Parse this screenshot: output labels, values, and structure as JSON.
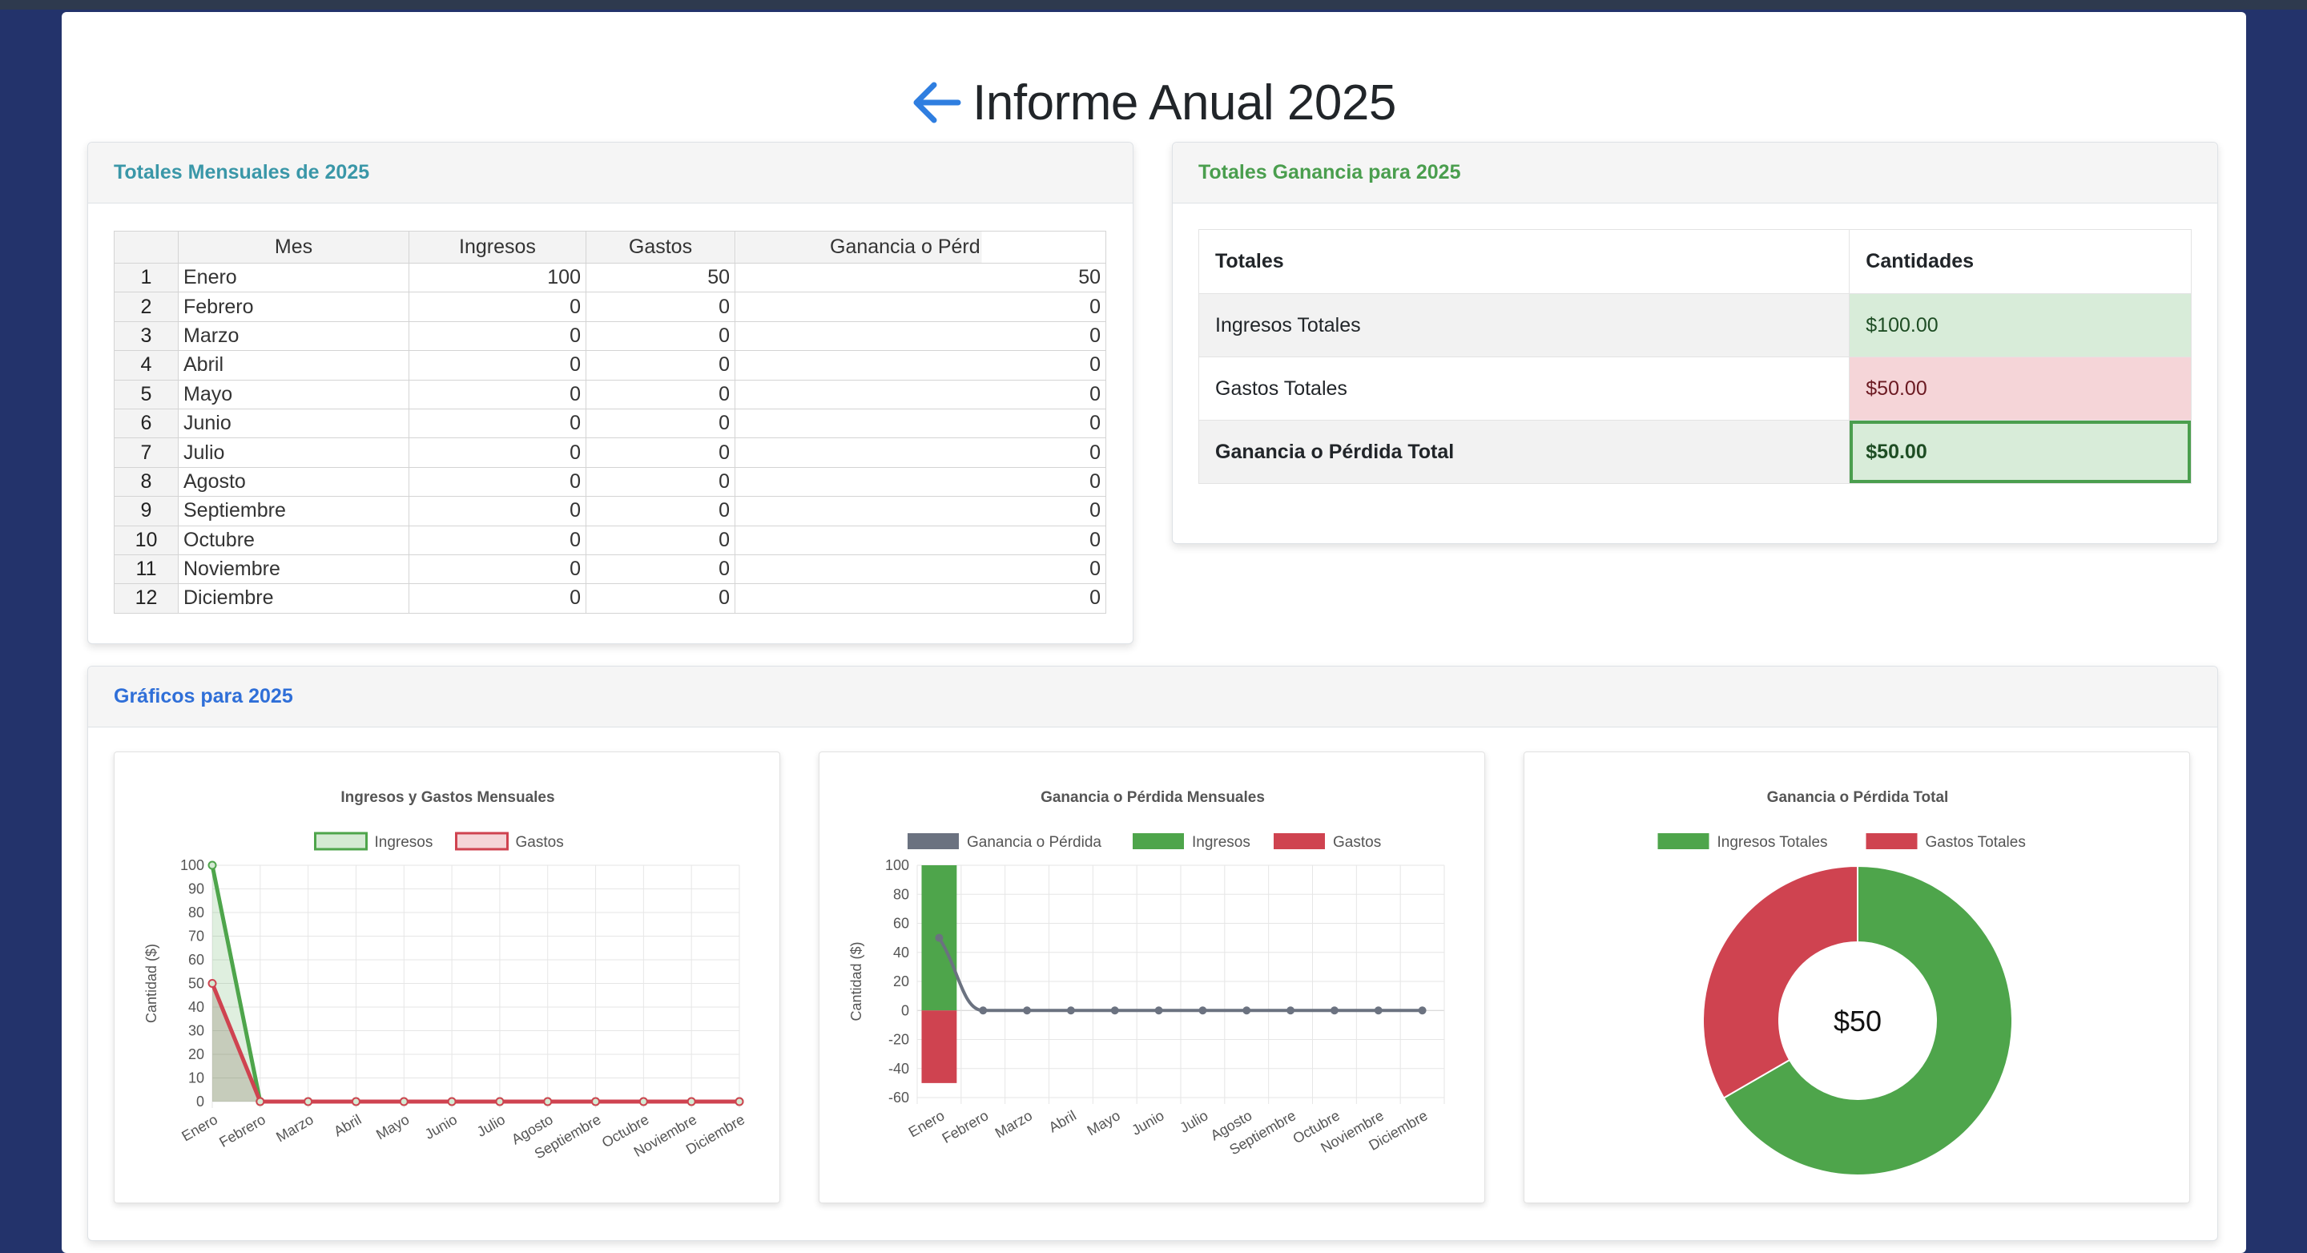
{
  "page": {
    "title": "Informe Anual 2025"
  },
  "monthly": {
    "header": "Totales Mensuales de 2025",
    "columns": [
      "Mes",
      "Ingresos",
      "Gastos",
      "Ganancia o Pérd"
    ],
    "rows": [
      {
        "n": "1",
        "mes": "Enero",
        "ingresos": "100",
        "gastos": "50",
        "ganancia": "50"
      },
      {
        "n": "2",
        "mes": "Febrero",
        "ingresos": "0",
        "gastos": "0",
        "ganancia": "0"
      },
      {
        "n": "3",
        "mes": "Marzo",
        "ingresos": "0",
        "gastos": "0",
        "ganancia": "0"
      },
      {
        "n": "4",
        "mes": "Abril",
        "ingresos": "0",
        "gastos": "0",
        "ganancia": "0"
      },
      {
        "n": "5",
        "mes": "Mayo",
        "ingresos": "0",
        "gastos": "0",
        "ganancia": "0"
      },
      {
        "n": "6",
        "mes": "Junio",
        "ingresos": "0",
        "gastos": "0",
        "ganancia": "0"
      },
      {
        "n": "7",
        "mes": "Julio",
        "ingresos": "0",
        "gastos": "0",
        "ganancia": "0"
      },
      {
        "n": "8",
        "mes": "Agosto",
        "ingresos": "0",
        "gastos": "0",
        "ganancia": "0"
      },
      {
        "n": "9",
        "mes": "Septiembre",
        "ingresos": "0",
        "gastos": "0",
        "ganancia": "0"
      },
      {
        "n": "10",
        "mes": "Octubre",
        "ingresos": "0",
        "gastos": "0",
        "ganancia": "0"
      },
      {
        "n": "11",
        "mes": "Noviembre",
        "ingresos": "0",
        "gastos": "0",
        "ganancia": "0"
      },
      {
        "n": "12",
        "mes": "Diciembre",
        "ingresos": "0",
        "gastos": "0",
        "ganancia": "0"
      }
    ]
  },
  "totals": {
    "header": "Totales Ganancia para 2025",
    "col_label": "Totales",
    "col_amount": "Cantidades",
    "rows": [
      {
        "label": "Ingresos Totales",
        "amount": "$100.00"
      },
      {
        "label": "Gastos Totales",
        "amount": "$50.00"
      },
      {
        "label": "Ganancia o Pérdida Total",
        "amount": "$50.00"
      }
    ]
  },
  "charts_section": {
    "header": "Gráficos para 2025"
  },
  "colors": {
    "accent_teal": "#3a97a8",
    "accent_green": "#4a9e4e",
    "accent_blue": "#2f6fd8",
    "income": "#4ea54b",
    "expense": "#cf4350",
    "profit": "#6b7280"
  },
  "icons": {
    "back": "arrow-left-icon"
  },
  "chart_data": [
    {
      "type": "line",
      "title": "Ingresos y Gastos Mensuales",
      "ylabel": "Cantidad ($)",
      "categories": [
        "Enero",
        "Febrero",
        "Marzo",
        "Abril",
        "Mayo",
        "Junio",
        "Julio",
        "Agosto",
        "Septiembre",
        "Octubre",
        "Noviembre",
        "Diciembre"
      ],
      "series": [
        {
          "name": "Ingresos",
          "values": [
            100,
            0,
            0,
            0,
            0,
            0,
            0,
            0,
            0,
            0,
            0,
            0
          ]
        },
        {
          "name": "Gastos",
          "values": [
            50,
            0,
            0,
            0,
            0,
            0,
            0,
            0,
            0,
            0,
            0,
            0
          ]
        }
      ],
      "ylim": [
        0,
        100
      ],
      "yticks": [
        0,
        10,
        20,
        30,
        40,
        50,
        60,
        70,
        80,
        90,
        100
      ],
      "grid": true,
      "legend": "top"
    },
    {
      "type": "bar",
      "title": "Ganancia o Pérdida Mensuales",
      "ylabel": "Cantidad ($)",
      "categories": [
        "Enero",
        "Febrero",
        "Marzo",
        "Abril",
        "Mayo",
        "Junio",
        "Julio",
        "Agosto",
        "Septiembre",
        "Octubre",
        "Noviembre",
        "Diciembre"
      ],
      "series": [
        {
          "name": "Ganancia o Pérdida",
          "type": "line",
          "values": [
            50,
            0,
            0,
            0,
            0,
            0,
            0,
            0,
            0,
            0,
            0,
            0
          ]
        },
        {
          "name": "Ingresos",
          "type": "bar",
          "values": [
            100,
            0,
            0,
            0,
            0,
            0,
            0,
            0,
            0,
            0,
            0,
            0
          ]
        },
        {
          "name": "Gastos",
          "type": "bar",
          "values": [
            -50,
            0,
            0,
            0,
            0,
            0,
            0,
            0,
            0,
            0,
            0,
            0
          ]
        }
      ],
      "ylim": [
        -60,
        100
      ],
      "yticks": [
        -60,
        -40,
        -20,
        0,
        20,
        40,
        60,
        80,
        100
      ],
      "grid": true,
      "legend": "top"
    },
    {
      "type": "pie",
      "title": "Ganancia o Pérdida Total",
      "categories": [
        "Ingresos Totales",
        "Gastos Totales"
      ],
      "values": [
        100,
        50
      ],
      "center_label": "$50",
      "legend": "top"
    }
  ]
}
